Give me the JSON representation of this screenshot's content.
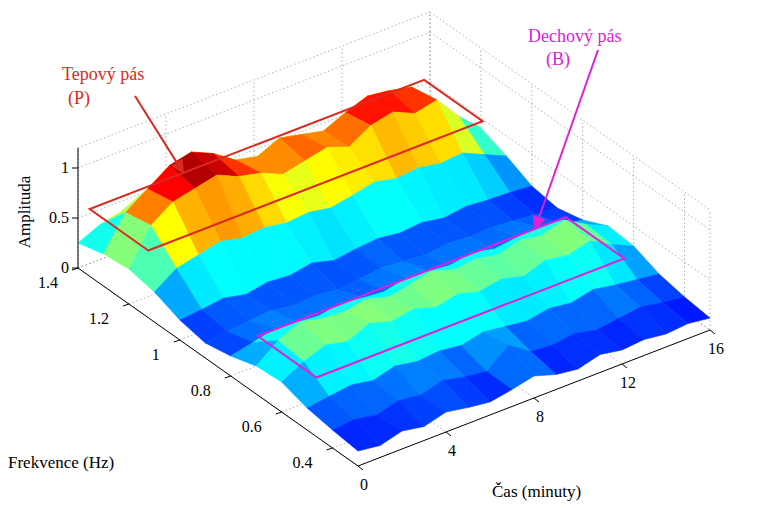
{
  "chart_data": {
    "type": "surface",
    "x_label": "Čas (minuty)",
    "y_label": "Frekvence (Hz)",
    "z_label": "Amplituda",
    "x": [
      0,
      1,
      2,
      3,
      4,
      5,
      6,
      7,
      8,
      9,
      10,
      11,
      12,
      13,
      14,
      15,
      16
    ],
    "y": [
      0.3,
      0.4,
      0.5,
      0.6,
      0.7,
      0.8,
      0.9,
      1.0,
      1.1,
      1.2,
      1.3,
      1.4
    ],
    "z": [
      [
        0.15,
        0.12,
        0.18,
        0.14,
        0.2,
        0.16,
        0.13,
        0.17,
        0.22,
        0.15,
        0.12,
        0.18,
        0.14,
        0.16,
        0.13,
        0.15,
        0.12
      ],
      [
        0.18,
        0.2,
        0.16,
        0.22,
        0.19,
        0.25,
        0.2,
        0.17,
        0.35,
        0.2,
        0.18,
        0.21,
        0.16,
        0.19,
        0.22,
        0.18,
        0.15
      ],
      [
        0.22,
        0.25,
        0.28,
        0.24,
        0.3,
        0.26,
        0.28,
        0.25,
        0.3,
        0.27,
        0.24,
        0.28,
        0.25,
        0.3,
        0.26,
        0.23,
        0.2
      ],
      [
        0.3,
        0.42,
        0.5,
        0.45,
        0.55,
        0.48,
        0.52,
        0.45,
        0.5,
        0.44,
        0.48,
        0.42,
        0.5,
        0.46,
        0.52,
        0.4,
        0.3
      ],
      [
        0.28,
        0.45,
        0.55,
        0.5,
        0.48,
        0.52,
        0.46,
        0.5,
        0.55,
        0.48,
        0.5,
        0.46,
        0.52,
        0.48,
        0.55,
        0.42,
        0.32
      ],
      [
        0.2,
        0.25,
        0.3,
        0.28,
        0.26,
        0.3,
        0.27,
        0.25,
        0.3,
        0.28,
        0.26,
        0.3,
        0.25,
        0.28,
        0.3,
        0.24,
        0.2
      ],
      [
        0.15,
        0.18,
        0.2,
        0.22,
        0.18,
        0.2,
        0.17,
        0.19,
        0.22,
        0.2,
        0.18,
        0.21,
        0.19,
        0.2,
        0.18,
        0.16,
        0.14
      ],
      [
        0.2,
        0.22,
        0.25,
        0.2,
        0.24,
        0.22,
        0.26,
        0.2,
        0.23,
        0.25,
        0.22,
        0.24,
        0.2,
        0.23,
        0.21,
        0.2,
        0.18
      ],
      [
        0.3,
        0.45,
        0.5,
        0.55,
        0.5,
        0.52,
        0.48,
        0.5,
        0.46,
        0.5,
        0.55,
        0.5,
        0.52,
        0.48,
        0.5,
        0.4,
        0.3
      ],
      [
        0.35,
        0.7,
        0.85,
        0.9,
        0.95,
        0.85,
        0.8,
        0.7,
        0.75,
        0.8,
        0.72,
        0.85,
        0.9,
        0.8,
        0.85,
        0.6,
        0.4
      ],
      [
        0.32,
        0.65,
        0.8,
        0.95,
        1.0,
        0.9,
        0.75,
        0.7,
        0.8,
        0.75,
        0.7,
        0.8,
        0.88,
        0.85,
        0.8,
        0.55,
        0.35
      ],
      [
        0.25,
        0.35,
        0.4,
        0.45,
        0.42,
        0.4,
        0.38,
        0.35,
        0.4,
        0.38,
        0.36,
        0.4,
        0.42,
        0.4,
        0.38,
        0.3,
        0.25
      ]
    ],
    "xlim": [
      0,
      16
    ],
    "xticks": [
      0,
      4,
      8,
      12,
      16
    ],
    "ylim": [
      0.3,
      1.4
    ],
    "yticks": [
      0.4,
      0.6,
      0.8,
      1,
      1.2,
      1.4
    ],
    "zlim": [
      0,
      1.2
    ],
    "zticks": [
      0,
      0.5,
      1
    ],
    "grid": true,
    "annotations": [
      {
        "text": "Tepový pás",
        "label": "(P)",
        "color": "#d92a22",
        "x_range": [
          0.3,
          15.5
        ],
        "y_range": [
          1.15,
          1.38
        ],
        "z_level": 0.6
      },
      {
        "text": "Dechový pás",
        "label": "(B)",
        "color": "#e020d8",
        "x_range": [
          1,
          15
        ],
        "y_range": [
          0.55,
          0.78
        ],
        "z_level": 0.35
      }
    ]
  }
}
